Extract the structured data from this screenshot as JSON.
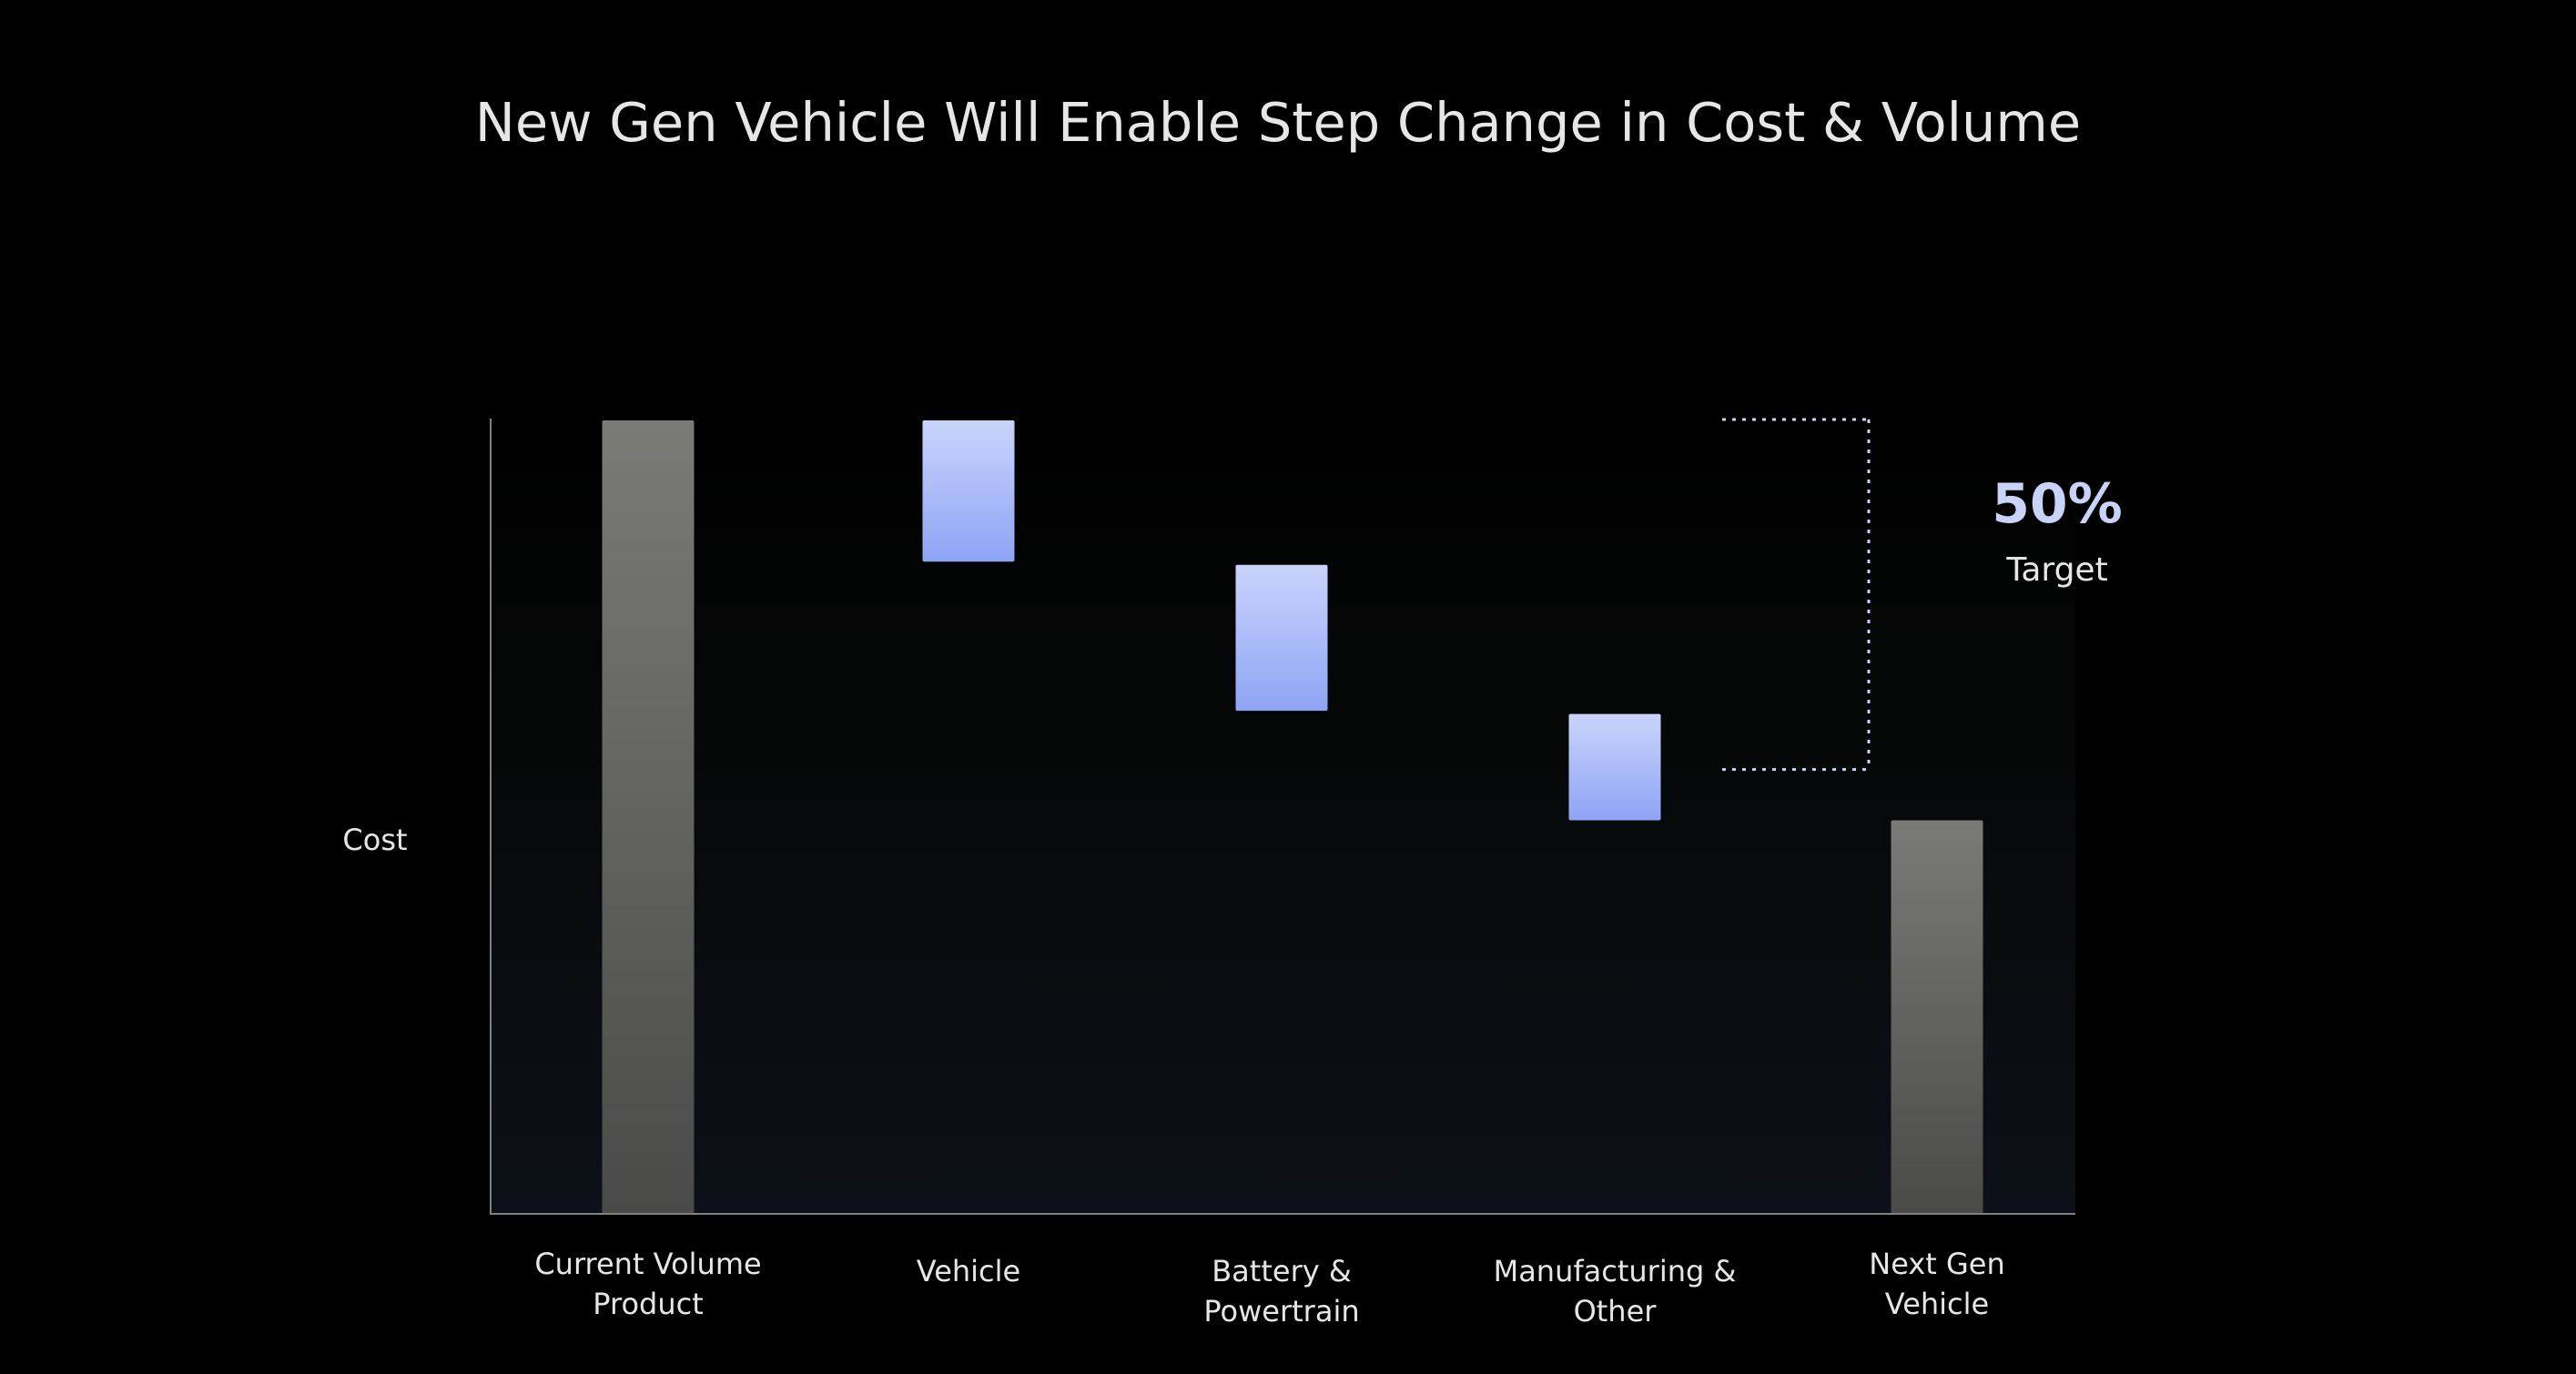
{
  "chart_data": {
    "type": "bar",
    "subtype": "waterfall",
    "title": "New Gen Vehicle Will Enable Step Change in Cost & Volume",
    "ylabel": "Cost",
    "xlabel": "",
    "categories": [
      {
        "lines": [
          "Current Volume",
          "Product"
        ]
      },
      {
        "lines": [
          "Vehicle"
        ]
      },
      {
        "lines": [
          "Battery &",
          "Powertrain"
        ]
      },
      {
        "lines": [
          "Manufacturing &",
          "Other"
        ]
      },
      {
        "lines": [
          "Next Gen",
          "Vehicle"
        ]
      }
    ],
    "bars": [
      {
        "kind": "total",
        "start": 0,
        "end": 1.0
      },
      {
        "kind": "delta",
        "start": 1.0,
        "end": 0.822
      },
      {
        "kind": "delta",
        "start": 0.818,
        "end": 0.634
      },
      {
        "kind": "delta",
        "start": 0.63,
        "end": 0.496
      },
      {
        "kind": "total",
        "start": 0,
        "end": 0.496
      }
    ],
    "ylim": [
      0,
      1.0
    ],
    "grid": false,
    "legend": "none",
    "annotation": {
      "value": "50%",
      "label": "Target",
      "from": 1.0,
      "to": 0.56
    },
    "colors": {
      "background": "#000000",
      "total_top": "#7a7b76",
      "total_bottom": "#4a4a48",
      "delta_top": "#cad4fb",
      "delta_bottom": "#8ea4f5",
      "annotation": "#c9d2f7",
      "text": "#e6e6e6",
      "axis": "#808080"
    }
  }
}
